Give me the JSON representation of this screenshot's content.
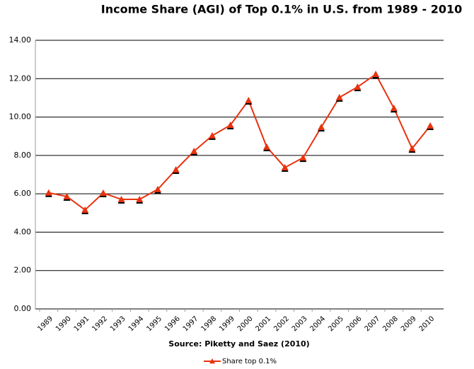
{
  "chart_data": {
    "type": "line",
    "title": "Income Share (AGI) of Top 0.1% in U.S. from 1989 - 2010",
    "x_label": "Source:  Piketty and Saez (2010)",
    "categories": [
      "1989",
      "1990",
      "1991",
      "1992",
      "1993",
      "1994",
      "1995",
      "1996",
      "1997",
      "1998",
      "1999",
      "2000",
      "2001",
      "2002",
      "2003",
      "2004",
      "2005",
      "2006",
      "2007",
      "2008",
      "2009",
      "2010"
    ],
    "series": [
      {
        "name": "Share top 0.1%",
        "color": "#e8330f",
        "values": [
          6.05,
          5.86,
          5.16,
          6.04,
          5.71,
          5.71,
          6.23,
          7.26,
          8.22,
          9.03,
          9.58,
          10.87,
          8.44,
          7.37,
          7.88,
          9.47,
          11.02,
          11.57,
          12.23,
          10.46,
          8.36,
          9.54
        ]
      }
    ],
    "ylim": [
      0,
      14
    ],
    "yticks": [
      {
        "value": 0,
        "label": "0.00"
      },
      {
        "value": 2,
        "label": "2.00"
      },
      {
        "value": 4,
        "label": "4.00"
      },
      {
        "value": 6,
        "label": "6.00"
      },
      {
        "value": 8,
        "label": "8.00"
      },
      {
        "value": 10,
        "label": "10.00"
      },
      {
        "value": 12,
        "label": "12.00"
      },
      {
        "value": 14,
        "label": "14.00"
      }
    ],
    "grid": true,
    "legend": "bottom"
  }
}
